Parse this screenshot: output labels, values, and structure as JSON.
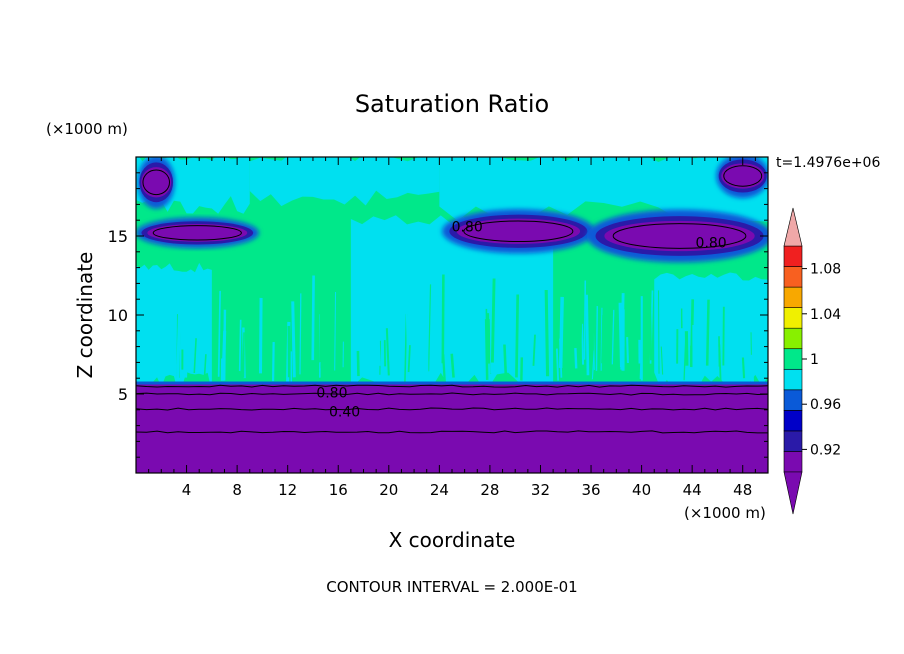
{
  "chart_data": {
    "type": "heatmap",
    "title": "Saturation Ratio",
    "xlabel": "X coordinate",
    "ylabel": "Z coordinate",
    "x_unit_label": "(×1000 m)",
    "y_unit_label": "(×1000 m)",
    "time_label": "t=1.4976e+06",
    "footer": "CONTOUR INTERVAL = 2.000E-01",
    "xlim": [
      0,
      50
    ],
    "ylim": [
      0,
      20
    ],
    "x_ticks": [
      4,
      8,
      12,
      16,
      20,
      24,
      28,
      32,
      36,
      40,
      44,
      48
    ],
    "y_ticks": [
      5,
      10,
      15
    ],
    "colorbar": {
      "levels": [
        0.9,
        0.92,
        0.94,
        0.96,
        0.98,
        1,
        1.02,
        1.04,
        1.06,
        1.08,
        1.1
      ],
      "tick_labels": [
        "0.92",
        "0.96",
        "1",
        "1.04",
        "1.08"
      ],
      "tick_values": [
        0.92,
        0.96,
        1,
        1.04,
        1.08
      ],
      "colors": [
        "#7a0ab0",
        "#2a1aa8",
        "#0000c8",
        "#0a5ad8",
        "#00e0f0",
        "#00e88a",
        "#88f000",
        "#f0f000",
        "#f8a800",
        "#f86020",
        "#f02020"
      ],
      "over_color": "#f0a8a8",
      "under_color": "#7a0ab0"
    },
    "contour_labels": [
      {
        "text": "0.80",
        "x": 15.5,
        "z": 5.1
      },
      {
        "text": "0.40",
        "x": 16.5,
        "z": 3.9
      },
      {
        "text": "0.80",
        "x": 45.5,
        "z": 14.6
      },
      {
        "text": "0.80",
        "x": 26.2,
        "z": 15.6
      }
    ],
    "regions": {
      "lower_layer": {
        "z_top": 5.6,
        "value": 0.5
      },
      "upper_background": {
        "value": 1.01
      },
      "moist_bands": [
        {
          "x": [
            0,
            9
          ],
          "z": [
            17,
            20
          ],
          "value": 0.99
        },
        {
          "x": [
            9,
            24
          ],
          "z": [
            17.5,
            20
          ],
          "value": 0.99
        },
        {
          "x": [
            24,
            50
          ],
          "z": [
            16.5,
            20
          ],
          "value": 0.99
        },
        {
          "x": [
            17,
            33
          ],
          "z": [
            5.7,
            16
          ],
          "value": 0.99
        },
        {
          "x": [
            41,
            50
          ],
          "z": [
            5.7,
            12.5
          ],
          "value": 0.99
        },
        {
          "x": [
            0,
            6
          ],
          "z": [
            5.7,
            13
          ],
          "value": 0.99
        }
      ],
      "dry_patches": [
        {
          "x": [
            0.2,
            3
          ],
          "z": [
            17.2,
            19.6
          ],
          "value": 0.85
        },
        {
          "x": [
            0.2,
            9.5
          ],
          "z": [
            14.5,
            15.9
          ],
          "value": 0.85
        },
        {
          "x": [
            24.5,
            36
          ],
          "z": [
            14.3,
            16.3
          ],
          "value": 0.85
        },
        {
          "x": [
            36,
            50
          ],
          "z": [
            13.8,
            16.2
          ],
          "value": 0.85
        },
        {
          "x": [
            46,
            50
          ],
          "z": [
            17.8,
            19.8
          ],
          "value": 0.88
        }
      ]
    }
  }
}
